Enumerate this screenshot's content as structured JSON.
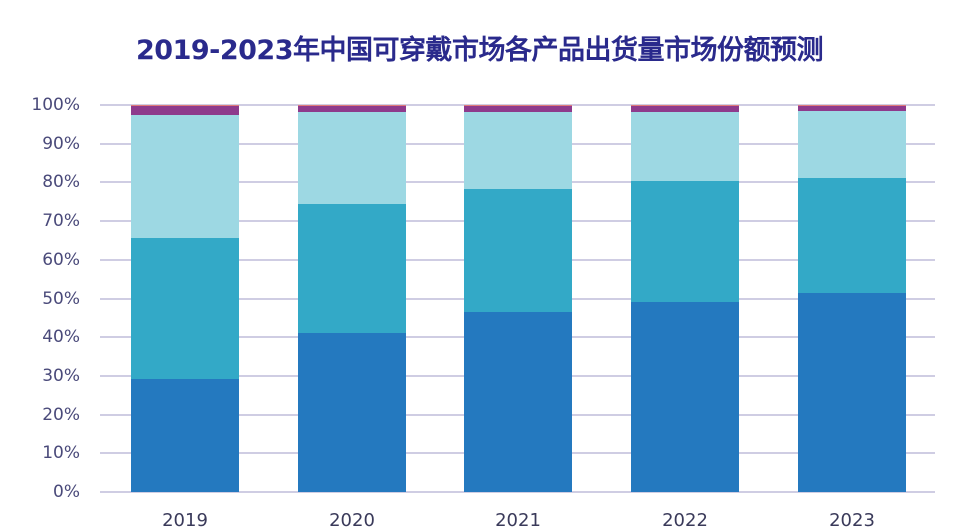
{
  "chart_data": {
    "type": "bar",
    "stacked": true,
    "title": "2019-2023年中国可穿戴市场各产品出货量市场份额预测",
    "xlabel": "",
    "ylabel": "",
    "ylim": [
      0,
      100
    ],
    "y_ticks": [
      "0%",
      "10%",
      "20%",
      "30%",
      "40%",
      "50%",
      "60%",
      "70%",
      "80%",
      "90%",
      "100%"
    ],
    "grid": true,
    "legend": "none visible",
    "categories": [
      "2019",
      "2020",
      "2021",
      "2022",
      "2023"
    ],
    "series": [
      {
        "name": "series-1",
        "color": "#2479bf",
        "values": [
          29.3,
          41.2,
          46.6,
          49.2,
          51.3
        ]
      },
      {
        "name": "series-2",
        "color": "#33a9c7",
        "values": [
          36.4,
          33.3,
          31.8,
          31.2,
          29.9
        ]
      },
      {
        "name": "series-3",
        "color": "#9dd8e3",
        "values": [
          31.6,
          23.7,
          19.8,
          17.8,
          17.2
        ]
      },
      {
        "name": "series-4",
        "color": "#8e3a8c",
        "values": [
          2.5,
          1.5,
          1.5,
          1.5,
          1.3
        ]
      },
      {
        "name": "series-5",
        "color": "#e07a7a",
        "values": [
          0.2,
          0.3,
          0.3,
          0.3,
          0.3
        ]
      }
    ]
  }
}
